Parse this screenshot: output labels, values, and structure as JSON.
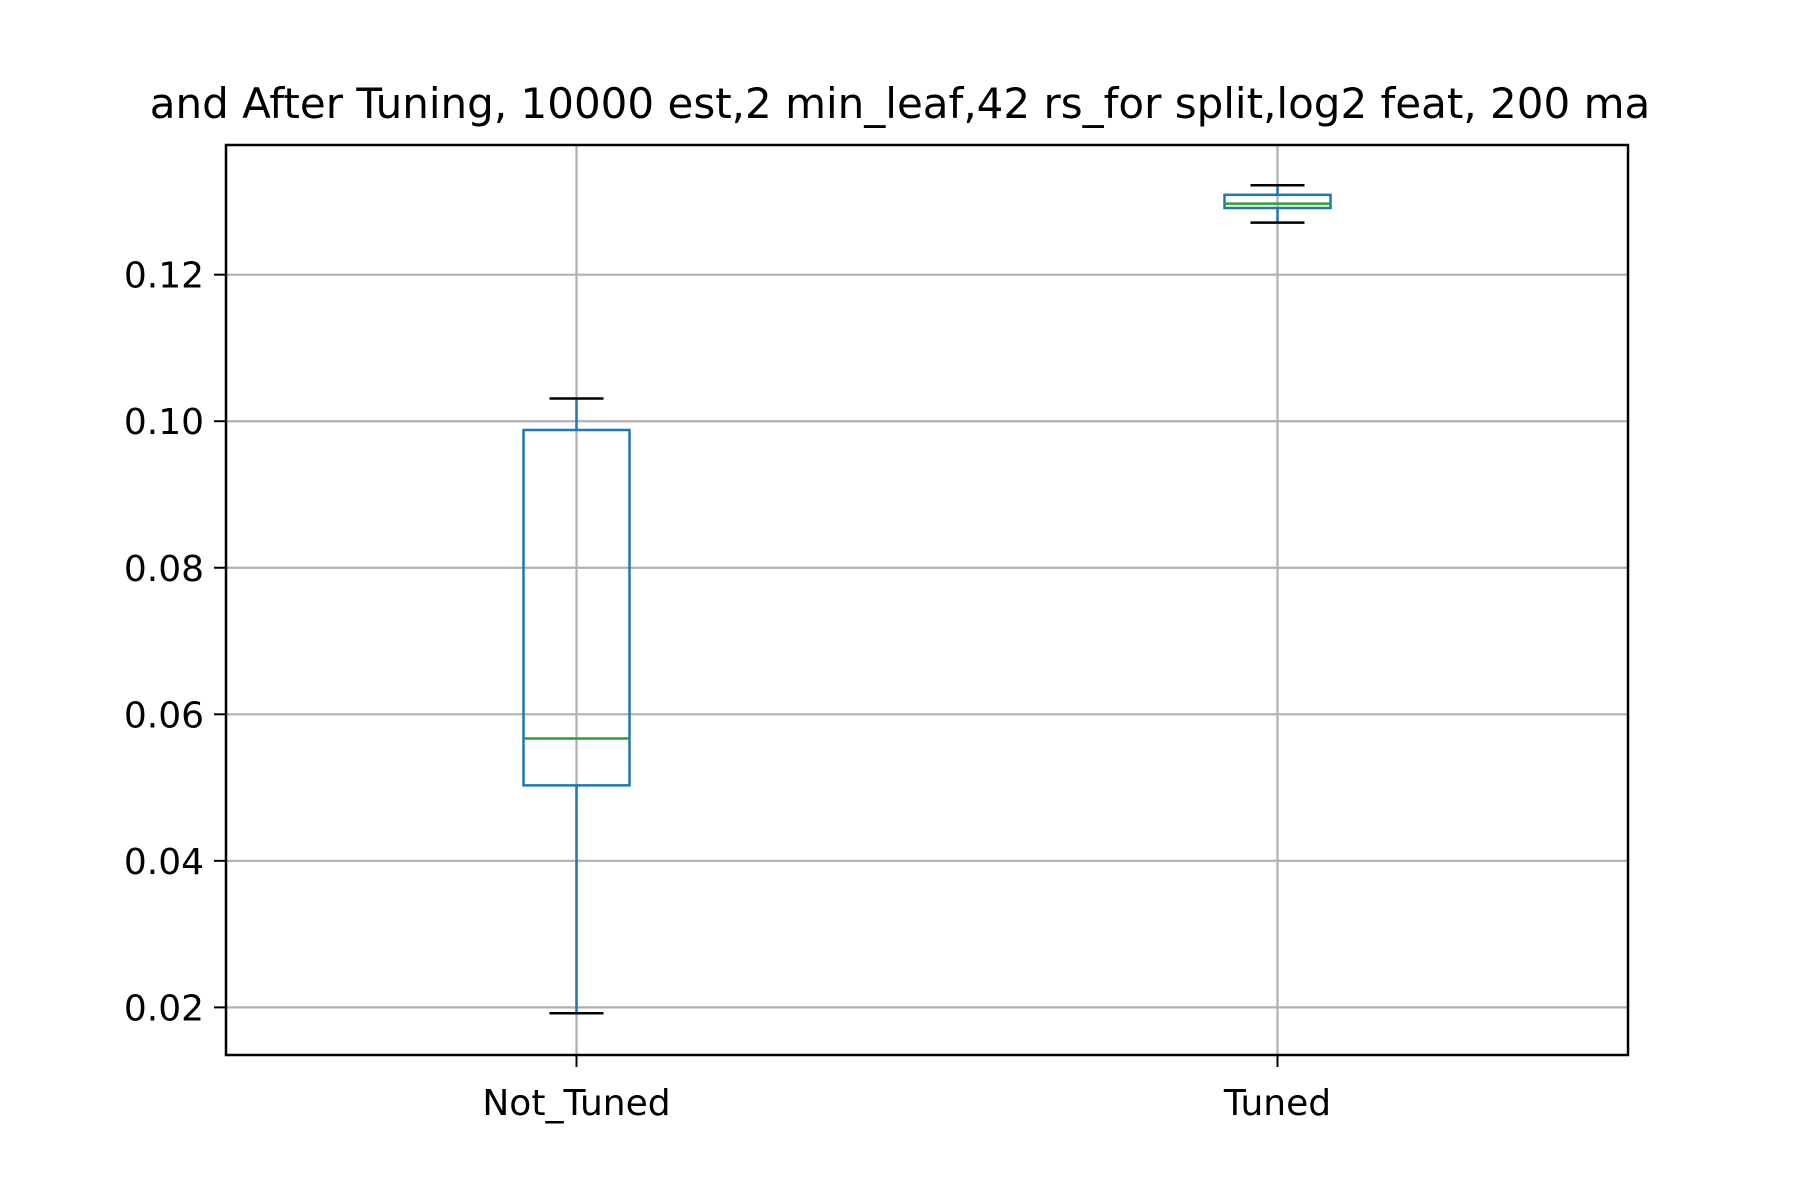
{
  "chart_data": {
    "type": "box",
    "title": "and After Tuning, 10000 est,2 min_leaf,42 rs_for split,log2 feat, 200 ma",
    "xlabel": "",
    "ylabel": "",
    "categories": [
      "Not_Tuned",
      "Tuned"
    ],
    "boxes": [
      {
        "category": "Not_Tuned",
        "whisker_low": 0.0192,
        "q1": 0.0503,
        "median": 0.0567,
        "q3": 0.0988,
        "whisker_high": 0.1031
      },
      {
        "category": "Tuned",
        "whisker_low": 0.1271,
        "q1": 0.1291,
        "median": 0.1297,
        "q3": 0.1309,
        "whisker_high": 0.1322
      }
    ],
    "ylim": [
      0.0135,
      0.1377
    ],
    "yticks": [
      0.02,
      0.04,
      0.06,
      0.08,
      0.1,
      0.12
    ],
    "ytick_labels": [
      "0.02",
      "0.04",
      "0.06",
      "0.08",
      "0.10",
      "0.12"
    ],
    "grid": true,
    "colors": {
      "box": "#1f77b4",
      "median": "#2ca02c",
      "whisker_cap": "#000000",
      "grid": "#b0b0b0"
    }
  }
}
